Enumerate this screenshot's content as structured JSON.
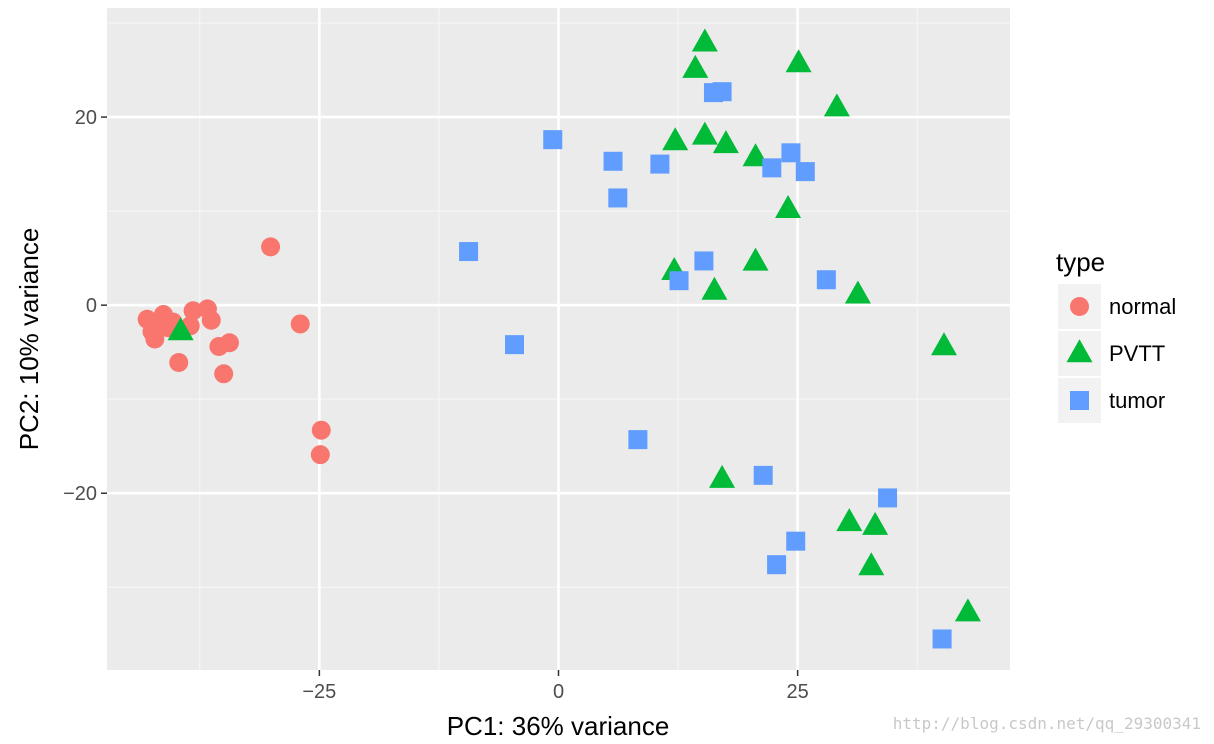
{
  "chart_data": {
    "type": "scatter",
    "title": "",
    "xlabel": "PC1: 36% variance",
    "ylabel": "PC2: 10% variance",
    "xlim": [
      -47.2,
      47.2
    ],
    "ylim": [
      -38.8,
      31.6
    ],
    "x_ticks": [
      -25,
      0,
      25
    ],
    "x_tick_labels": [
      "−25",
      "0",
      "25"
    ],
    "y_ticks": [
      -20,
      0,
      20
    ],
    "y_tick_labels": [
      "−20",
      "0",
      "20"
    ],
    "grid": true,
    "background": "#ebebeb",
    "legend": {
      "title": "type",
      "position": "right"
    },
    "series": [
      {
        "name": "normal",
        "shape": "circle",
        "color": "#F8766D",
        "points": [
          [
            -43.0,
            -1.5
          ],
          [
            -42.5,
            -2.8
          ],
          [
            -42.2,
            -3.6
          ],
          [
            -41.7,
            -2.0
          ],
          [
            -41.3,
            -1.0
          ],
          [
            -40.8,
            -2.4
          ],
          [
            -40.3,
            -1.8
          ],
          [
            -39.7,
            -6.1
          ],
          [
            -38.5,
            -2.2
          ],
          [
            -38.2,
            -0.6
          ],
          [
            -36.7,
            -0.4
          ],
          [
            -36.3,
            -1.6
          ],
          [
            -35.5,
            -4.4
          ],
          [
            -35.0,
            -7.3
          ],
          [
            -34.4,
            -4.0
          ],
          [
            -30.1,
            6.2
          ],
          [
            -27.0,
            -2.0
          ],
          [
            -24.8,
            -13.3
          ],
          [
            -24.9,
            -15.9
          ]
        ]
      },
      {
        "name": "PVTT",
        "shape": "triangle",
        "color": "#00BA38",
        "points": [
          [
            -39.5,
            -2.8
          ],
          [
            15.3,
            27.9
          ],
          [
            14.3,
            25.1
          ],
          [
            25.1,
            25.7
          ],
          [
            29.1,
            21.0
          ],
          [
            12.2,
            17.4
          ],
          [
            15.3,
            18.0
          ],
          [
            17.5,
            17.1
          ],
          [
            20.6,
            15.7
          ],
          [
            24.0,
            10.2
          ],
          [
            12.1,
            3.6
          ],
          [
            16.3,
            1.5
          ],
          [
            20.6,
            4.6
          ],
          [
            31.3,
            1.1
          ],
          [
            40.3,
            -4.4
          ],
          [
            17.1,
            -18.5
          ],
          [
            30.4,
            -23.1
          ],
          [
            33.1,
            -23.5
          ],
          [
            32.7,
            -27.8
          ],
          [
            42.8,
            -32.7
          ]
        ]
      },
      {
        "name": "tumor",
        "shape": "square",
        "color": "#619CFF",
        "points": [
          [
            16.2,
            22.6
          ],
          [
            17.1,
            22.7
          ],
          [
            -0.6,
            17.6
          ],
          [
            5.7,
            15.3
          ],
          [
            10.6,
            15.0
          ],
          [
            6.2,
            11.4
          ],
          [
            22.3,
            14.6
          ],
          [
            24.3,
            16.2
          ],
          [
            25.8,
            14.2
          ],
          [
            -9.4,
            5.7
          ],
          [
            15.2,
            4.7
          ],
          [
            12.6,
            2.6
          ],
          [
            28.0,
            2.7
          ],
          [
            -4.6,
            -4.2
          ],
          [
            8.3,
            -14.3
          ],
          [
            21.4,
            -18.1
          ],
          [
            34.4,
            -20.5
          ],
          [
            24.8,
            -25.1
          ],
          [
            22.8,
            -27.6
          ],
          [
            40.1,
            -35.5
          ]
        ]
      }
    ]
  },
  "watermark": "http://blog.csdn.net/qq_29300341"
}
